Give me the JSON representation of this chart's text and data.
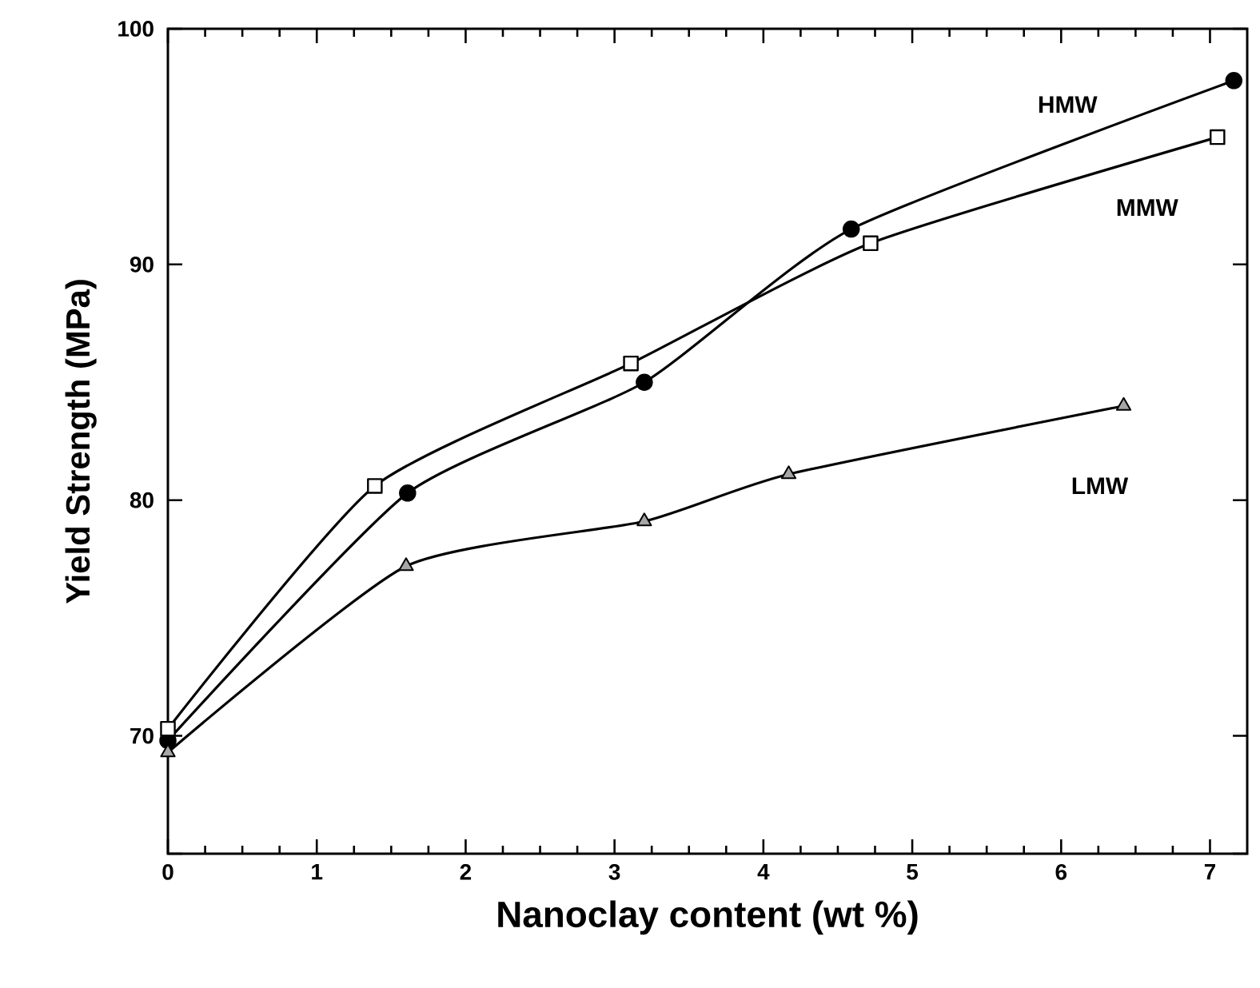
{
  "chart_data": {
    "type": "line",
    "xlabel": "Nanoclay content (wt %)",
    "ylabel": "Yield Strength (MPa)",
    "xlim": [
      0,
      7.25
    ],
    "ylim": [
      65,
      100
    ],
    "xticks": [
      0,
      1,
      2,
      3,
      4,
      5,
      6,
      7
    ],
    "yticks": [
      {
        "value": 65,
        "label": null
      },
      70,
      80,
      90,
      100
    ],
    "series": [
      {
        "name": "HMW",
        "color": "#000000",
        "marker": "circle",
        "x": [
          0,
          1.61,
          3.2,
          4.59,
          7.16
        ],
        "values": [
          69.8,
          80.3,
          85.0,
          91.5,
          97.8
        ]
      },
      {
        "name": "MMW",
        "color": "#000000",
        "marker": "square",
        "x": [
          0,
          1.39,
          3.11,
          4.72,
          7.05
        ],
        "values": [
          70.3,
          80.6,
          85.8,
          90.9,
          95.4
        ]
      },
      {
        "name": "LMW",
        "color": "#000000",
        "marker": "triangle",
        "x": [
          0,
          1.6,
          3.2,
          4.17,
          6.42
        ],
        "values": [
          69.3,
          77.2,
          79.1,
          81.1,
          84.0
        ]
      }
    ]
  }
}
